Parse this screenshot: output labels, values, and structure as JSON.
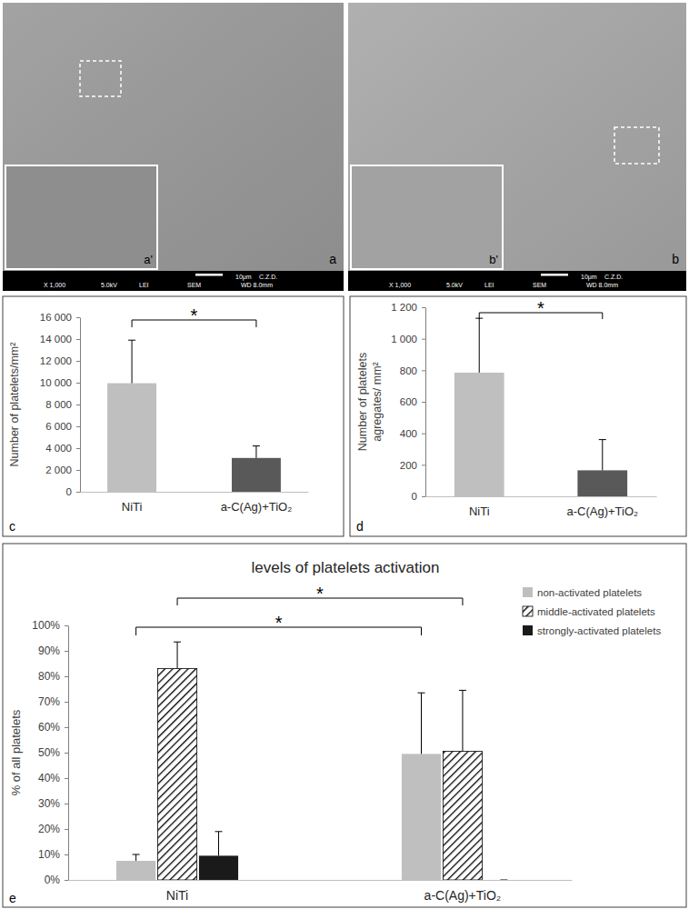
{
  "images": [
    {
      "type": "micrograph",
      "label": "a",
      "inset_label": "a'",
      "scale_bar": "10μm",
      "operator": "C.Z.D.",
      "info": [
        "X 1,000",
        "5.0kV",
        "LEI",
        "SEM",
        "WD 8.0mm"
      ]
    },
    {
      "type": "micrograph",
      "label": "b",
      "inset_label": "b'",
      "scale_bar": "10μm",
      "operator": "C.Z.D.",
      "info": [
        "X 1,000",
        "5.0kV",
        "LEI",
        "SEM",
        "WD 8.0mm"
      ]
    }
  ],
  "chart_data": [
    {
      "type": "bar",
      "panel_label": "c",
      "categories": [
        "NiTi",
        "a-C(Ag)+TiO₂"
      ],
      "values": [
        9950,
        3100
      ],
      "errors": [
        3950,
        1100
      ],
      "colors": [
        "#bfbfbf",
        "#595959"
      ],
      "ylabel": [
        "Number of platelets/mm²"
      ],
      "ylim": [
        0,
        16000
      ],
      "yticks": [
        0,
        {
          "value": 2000,
          "label": "2 000"
        },
        {
          "value": 4000,
          "label": "4 000"
        },
        {
          "value": 6000,
          "label": "6 000"
        },
        {
          "value": 8000,
          "label": "8 000"
        },
        {
          "value": 10000,
          "label": "10 000"
        },
        {
          "value": 12000,
          "label": "12 000"
        },
        {
          "value": 14000,
          "label": "14 000"
        },
        {
          "value": 16000,
          "label": "16 000"
        }
      ],
      "grid": false,
      "annotations": [
        {
          "text": "*",
          "between": [
            "NiTi",
            "a-C(Ag)+TiO₂"
          ]
        }
      ]
    },
    {
      "type": "bar",
      "panel_label": "d",
      "categories": [
        "NiTi",
        "a-C(Ag)+TiO₂"
      ],
      "values": [
        785,
        165
      ],
      "errors": [
        345,
        195
      ],
      "colors": [
        "#bfbfbf",
        "#595959"
      ],
      "ylabel": [
        "Number of platelets",
        "agregates/ mm²"
      ],
      "ylim": [
        0,
        1200
      ],
      "yticks": [
        0,
        200,
        400,
        600,
        800,
        {
          "value": 1000,
          "label": "1 000"
        },
        {
          "value": 1200,
          "label": "1 200"
        }
      ],
      "grid": false,
      "annotations": [
        {
          "text": "*",
          "between": [
            "NiTi",
            "a-C(Ag)+TiO₂"
          ]
        }
      ]
    },
    {
      "type": "bar",
      "panel_label": "e",
      "title": "levels of platelets activation",
      "categories": [
        "NiTi",
        "a-C(Ag)+TiO₂"
      ],
      "ylabel": [
        "% of all platelets"
      ],
      "ylim": [
        0,
        100
      ],
      "yticks": [
        {
          "value": 0,
          "label": "0%"
        },
        {
          "value": 10,
          "label": "10%"
        },
        {
          "value": 20,
          "label": "20%"
        },
        {
          "value": 30,
          "label": "30%"
        },
        {
          "value": 40,
          "label": "40%"
        },
        {
          "value": 50,
          "label": "50%"
        },
        {
          "value": 60,
          "label": "60%"
        },
        {
          "value": 70,
          "label": "70%"
        },
        {
          "value": 80,
          "label": "80%"
        },
        {
          "value": 90,
          "label": "90%"
        },
        {
          "value": 100,
          "label": "100%"
        }
      ],
      "grid": false,
      "legend": "top-right",
      "series": [
        {
          "name": "non-activated platelets",
          "color": "#bfbfbf",
          "values": [
            7.5,
            49.5
          ],
          "errors": [
            2.5,
            24
          ]
        },
        {
          "name": "middle-activated platelets",
          "color": "#000000",
          "line_style": "hatched",
          "values": [
            83,
            50.5
          ],
          "errors": [
            10.5,
            24
          ]
        },
        {
          "name": "strongly-activated platelets",
          "color": "#1a1a1a",
          "values": [
            9.5,
            0
          ],
          "errors": [
            9.5,
            0
          ]
        }
      ],
      "annotations": [
        {
          "text": "*",
          "between": [
            "NiTi",
            "a-C(Ag)+TiO₂"
          ],
          "series": "non-activated platelets"
        },
        {
          "text": "*",
          "between": [
            "NiTi",
            "a-C(Ag)+TiO₂"
          ],
          "series": "middle-activated platelets"
        }
      ]
    }
  ]
}
